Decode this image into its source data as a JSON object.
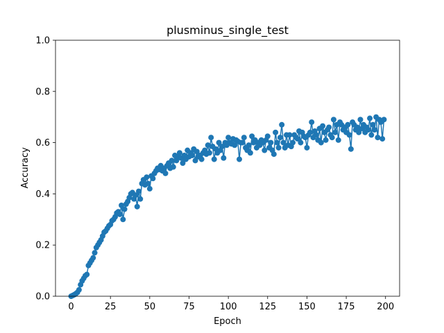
{
  "chart_data": {
    "type": "line",
    "title": "plusminus_single_test",
    "x_label": "Epoch",
    "y_label": "Accuracy",
    "x": [
      0,
      1,
      2,
      3,
      4,
      5,
      6,
      7,
      8,
      9,
      10,
      11,
      12,
      13,
      14,
      15,
      16,
      17,
      18,
      19,
      20,
      21,
      22,
      23,
      24,
      25,
      26,
      27,
      28,
      29,
      30,
      31,
      32,
      33,
      34,
      35,
      36,
      37,
      38,
      39,
      40,
      41,
      42,
      43,
      44,
      45,
      46,
      47,
      48,
      49,
      50,
      51,
      52,
      53,
      54,
      55,
      56,
      57,
      58,
      59,
      60,
      61,
      62,
      63,
      64,
      65,
      66,
      67,
      68,
      69,
      70,
      71,
      72,
      73,
      74,
      75,
      76,
      77,
      78,
      79,
      80,
      81,
      82,
      83,
      84,
      85,
      86,
      87,
      88,
      89,
      90,
      91,
      92,
      93,
      94,
      95,
      96,
      97,
      98,
      99,
      100,
      101,
      102,
      103,
      104,
      105,
      106,
      107,
      108,
      109,
      110,
      111,
      112,
      113,
      114,
      115,
      116,
      117,
      118,
      119,
      120,
      121,
      122,
      123,
      124,
      125,
      126,
      127,
      128,
      129,
      130,
      131,
      132,
      133,
      134,
      135,
      136,
      137,
      138,
      139,
      140,
      141,
      142,
      143,
      144,
      145,
      146,
      147,
      148,
      149,
      150,
      151,
      152,
      153,
      154,
      155,
      156,
      157,
      158,
      159,
      160,
      161,
      162,
      163,
      164,
      165,
      166,
      167,
      168,
      169,
      170,
      171,
      172,
      173,
      174,
      175,
      176,
      177,
      178,
      179,
      180,
      181,
      182,
      183,
      184,
      185,
      186,
      187,
      188,
      189,
      190,
      191,
      192,
      193,
      194,
      195,
      196,
      197,
      198,
      199
    ],
    "values": [
      0,
      0.003,
      0.006,
      0.01,
      0.015,
      0.025,
      0.045,
      0.06,
      0.07,
      0.08,
      0.085,
      0.12,
      0.13,
      0.14,
      0.15,
      0.17,
      0.19,
      0.2,
      0.21,
      0.22,
      0.235,
      0.25,
      0.255,
      0.265,
      0.275,
      0.28,
      0.295,
      0.3,
      0.31,
      0.325,
      0.33,
      0.32,
      0.355,
      0.3,
      0.34,
      0.36,
      0.37,
      0.385,
      0.4,
      0.405,
      0.38,
      0.395,
      0.35,
      0.41,
      0.38,
      0.44,
      0.455,
      0.435,
      0.465,
      0.44,
      0.42,
      0.47,
      0.46,
      0.48,
      0.49,
      0.5,
      0.495,
      0.51,
      0.49,
      0.5,
      0.48,
      0.51,
      0.52,
      0.5,
      0.53,
      0.505,
      0.55,
      0.53,
      0.545,
      0.56,
      0.54,
      0.52,
      0.55,
      0.535,
      0.57,
      0.545,
      0.56,
      0.55,
      0.575,
      0.53,
      0.565,
      0.545,
      0.55,
      0.535,
      0.56,
      0.57,
      0.555,
      0.59,
      0.56,
      0.62,
      0.585,
      0.535,
      0.575,
      0.56,
      0.6,
      0.57,
      0.585,
      0.54,
      0.6,
      0.59,
      0.62,
      0.6,
      0.595,
      0.615,
      0.59,
      0.61,
      0.605,
      0.535,
      0.6,
      0.6,
      0.62,
      0.58,
      0.57,
      0.59,
      0.56,
      0.625,
      0.6,
      0.61,
      0.58,
      0.6,
      0.59,
      0.61,
      0.6,
      0.57,
      0.61,
      0.625,
      0.58,
      0.6,
      0.57,
      0.555,
      0.64,
      0.6,
      0.58,
      0.62,
      0.67,
      0.6,
      0.58,
      0.63,
      0.59,
      0.63,
      0.585,
      0.6,
      0.63,
      0.62,
      0.615,
      0.645,
      0.6,
      0.64,
      0.625,
      0.62,
      0.58,
      0.63,
      0.64,
      0.68,
      0.62,
      0.645,
      0.63,
      0.61,
      0.655,
      0.6,
      0.665,
      0.64,
      0.61,
      0.65,
      0.66,
      0.63,
      0.62,
      0.69,
      0.64,
      0.67,
      0.61,
      0.68,
      0.67,
      0.65,
      0.66,
      0.64,
      0.67,
      0.63,
      0.575,
      0.68,
      0.67,
      0.65,
      0.66,
      0.64,
      0.69,
      0.655,
      0.67,
      0.64,
      0.66,
      0.65,
      0.695,
      0.63,
      0.67,
      0.65,
      0.7,
      0.62,
      0.69,
      0.68,
      0.615,
      0.69
    ],
    "color": "#1f77b4",
    "xlim": [
      -9.95,
      208.95
    ],
    "xticks": [
      0,
      25,
      50,
      75,
      100,
      125,
      150,
      175,
      200
    ],
    "ylim": [
      0,
      1
    ],
    "yticks": [
      {
        "value": 0,
        "label": "0.0"
      },
      0.2,
      0.4,
      0.6,
      0.8,
      {
        "value": 1,
        "label": "1.0"
      }
    ]
  }
}
